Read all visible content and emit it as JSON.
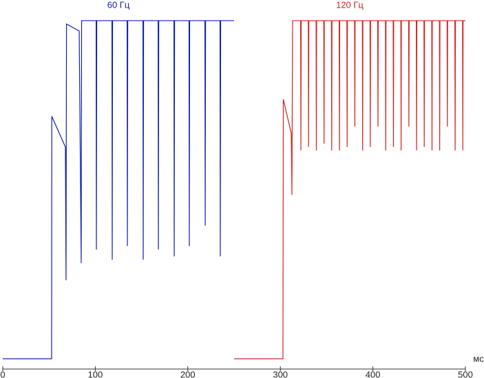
{
  "chart_data": {
    "type": "line",
    "x_label": "мс",
    "xlim": [
      0,
      500
    ],
    "xticks": [
      0,
      100,
      200,
      300,
      400,
      500
    ],
    "ylim": [
      -3,
      100
    ],
    "series": [
      {
        "name": "60 Гц",
        "color": "#1020b0",
        "x": [
          0,
          52.8,
          53.0,
          67.7,
          68.4,
          68.9,
          82.6,
          84.8,
          85.2,
          100.9,
          101.2,
          101.6,
          118.0,
          118.3,
          118.7,
          134.4,
          134.7,
          135.1,
          151.5,
          151.8,
          152.2,
          167.9,
          168.2,
          168.6,
          185.0,
          185.3,
          185.7,
          201.3,
          201.6,
          202.0,
          218.5,
          218.8,
          219.2,
          234.8,
          235.1,
          235.5,
          250
        ],
        "values": [
          0,
          0,
          71,
          62,
          23,
          98,
          96,
          28,
          99,
          99,
          32,
          99,
          99,
          29,
          99,
          99,
          33,
          99,
          99,
          29,
          99,
          99,
          32,
          99,
          99,
          30,
          99,
          99,
          33,
          99,
          99,
          39,
          99,
          99,
          30,
          99,
          99
        ]
      },
      {
        "name": "120 Гц",
        "color": "#d42020",
        "x": [
          250,
          302.8,
          303.2,
          311.8,
          312.5,
          313.2,
          321.9,
          322.2,
          322.5,
          330.2,
          330.5,
          330.8,
          338.6,
          338.9,
          339.2,
          346.9,
          347.2,
          347.5,
          355.2,
          355.5,
          355.8,
          363.6,
          363.9,
          364.2,
          371.9,
          372.2,
          372.5,
          380.2,
          380.5,
          380.8,
          388.6,
          388.9,
          389.2,
          396.9,
          397.2,
          397.5,
          405.2,
          405.5,
          405.8,
          413.6,
          413.9,
          414.2,
          421.9,
          422.2,
          422.5,
          430.2,
          430.5,
          430.8,
          438.6,
          438.9,
          439.2,
          446.9,
          447.2,
          447.5,
          455.2,
          455.5,
          455.8,
          463.6,
          463.9,
          464.2,
          471.9,
          472.2,
          472.5,
          480.2,
          480.5,
          480.8,
          488.6,
          488.9,
          489.2,
          496.9,
          497.2,
          497.5,
          500
        ],
        "values": [
          0,
          0,
          76,
          66,
          48,
          99,
          99,
          61,
          99,
          99,
          62,
          99,
          99,
          61,
          99,
          99,
          63,
          99,
          99,
          61,
          99,
          99,
          61,
          99,
          99,
          62,
          99,
          99,
          68,
          99,
          99,
          61,
          99,
          99,
          62,
          99,
          99,
          68,
          99,
          99,
          61,
          99,
          99,
          62,
          99,
          99,
          61,
          99,
          99,
          68,
          99,
          99,
          61,
          99,
          99,
          62,
          99,
          99,
          61,
          99,
          99,
          61,
          99,
          99,
          68,
          99,
          99,
          61,
          99,
          99,
          61,
          99,
          99
        ]
      }
    ]
  }
}
